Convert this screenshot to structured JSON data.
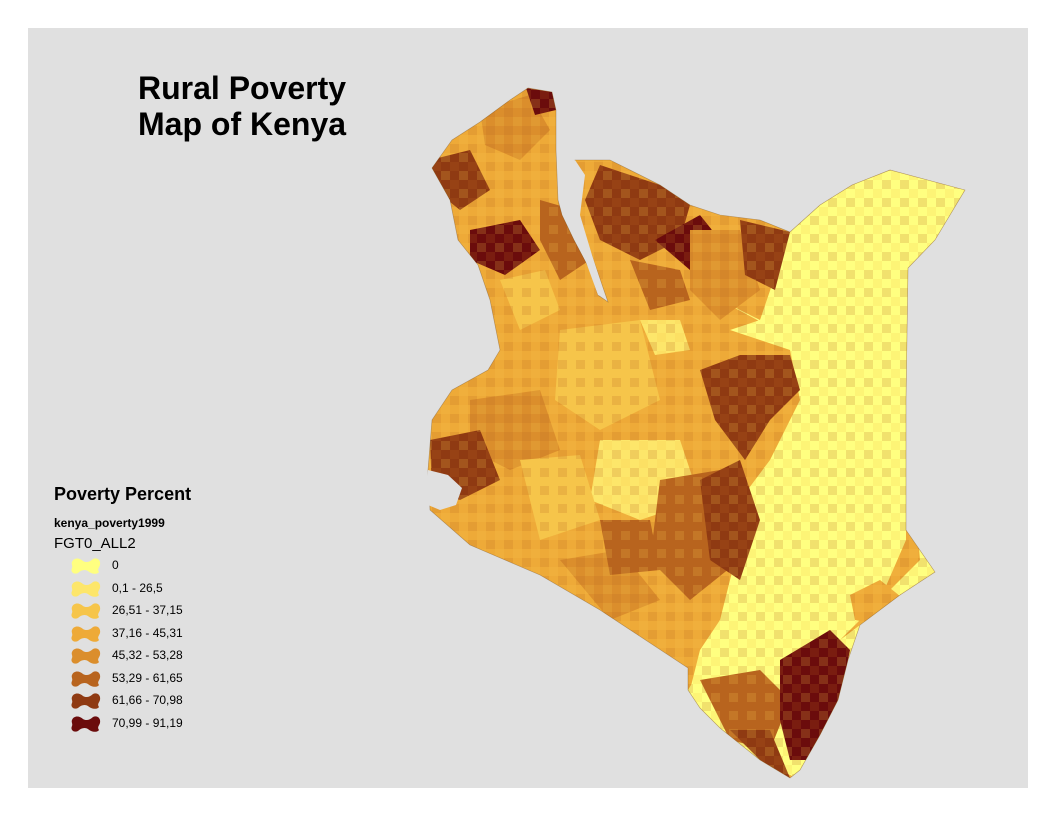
{
  "title": {
    "line1": "Rural Poverty",
    "line2": "Map of Kenya"
  },
  "legend": {
    "title": "Poverty Percent",
    "layer": "kenya_poverty1999",
    "field": "FGT0_ALL2",
    "classes": [
      {
        "label": "0",
        "color": "#ffff80"
      },
      {
        "label": "0,1 - 26,5",
        "color": "#fde66a"
      },
      {
        "label": "26,51 - 37,15",
        "color": "#f6c54a"
      },
      {
        "label": "37,16 - 45,31",
        "color": "#eeaa38"
      },
      {
        "label": "45,32 - 53,28",
        "color": "#db8e2c"
      },
      {
        "label": "53,29 - 61,65",
        "color": "#b8641e"
      },
      {
        "label": "61,66 - 70,98",
        "color": "#8f3a12"
      },
      {
        "label": "70,99 - 91,19",
        "color": "#6b0c0c"
      }
    ]
  }
}
